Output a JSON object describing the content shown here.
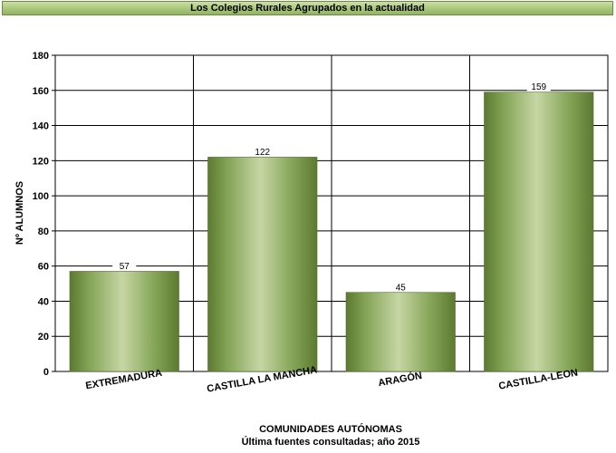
{
  "header": {
    "title": "Los Colegios Rurales Agrupados en la actualidad"
  },
  "chart_data": {
    "type": "bar",
    "categories": [
      "EXTREMADURA",
      "CASTILLA LA MANCHA",
      "ARAGÓN",
      "CASTILLA-LEON"
    ],
    "values": [
      57,
      122,
      45,
      159
    ],
    "data_labels": [
      "57",
      "122",
      "45",
      "159"
    ],
    "ylabel": "Nº ALUMNOS",
    "xlabel": "COMUNIDADES AUTÓNOMAS",
    "note": "Última fuentes consultadas; año 2015",
    "ylim": [
      0,
      180
    ],
    "yticks": [
      "0",
      "20",
      "40",
      "60",
      "80",
      "100",
      "120",
      "140",
      "160",
      "180"
    ],
    "grid": true,
    "bar_color": "#7a9a4a"
  }
}
